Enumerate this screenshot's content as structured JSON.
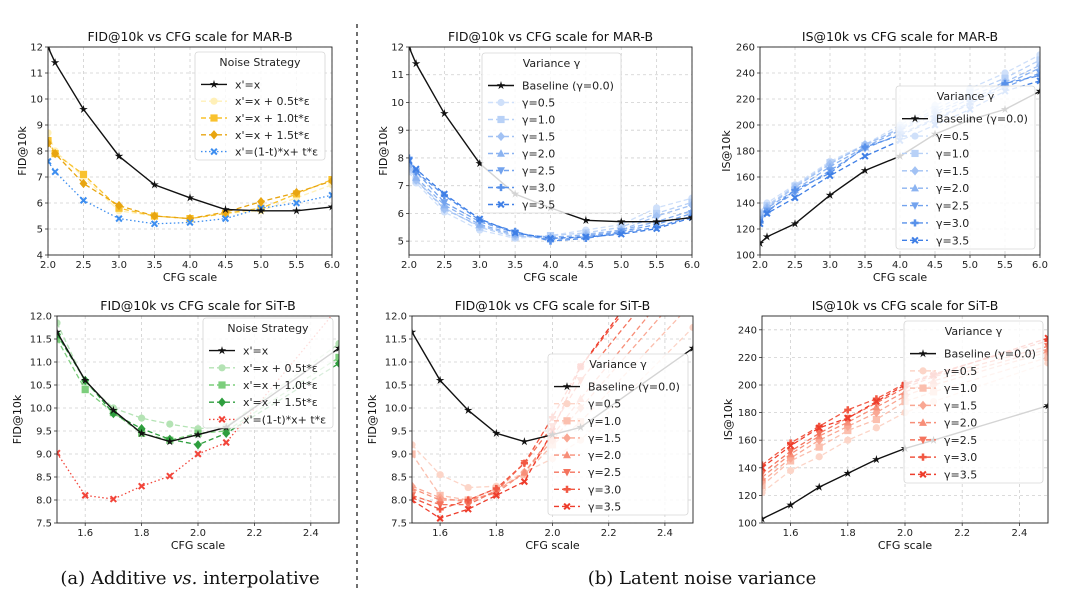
{
  "captions": {
    "a_prefix": "(a) Additive ",
    "a_vs": "vs.",
    "a_suffix": " interpolative",
    "b": "(b) Latent noise variance"
  },
  "chart_data": [
    {
      "type": "line",
      "title": "FID@10k vs CFG scale for MAR-B",
      "xlabel": "CFG scale",
      "ylabel": "FID@10k",
      "xlim": [
        2.0,
        6.0
      ],
      "ylim": [
        4,
        12
      ],
      "xticks": [
        "2.0",
        "2.5",
        "3.0",
        "3.5",
        "4.0",
        "4.5",
        "5.0",
        "5.5",
        "6.0"
      ],
      "yticks": [
        "4",
        "5",
        "6",
        "7",
        "8",
        "9",
        "10",
        "11",
        "12"
      ],
      "grid": true,
      "legend_title": "Noise Strategy",
      "legend_position": "upper-right",
      "x": [
        2.0,
        2.1,
        2.5,
        3.0,
        3.5,
        4.0,
        4.5,
        5.0,
        5.5,
        6.0
      ],
      "series": [
        {
          "name": "x'=x",
          "color": "#111111",
          "marker": "star",
          "style": "solid",
          "values": [
            12,
            11.4,
            9.6,
            7.8,
            6.7,
            6.2,
            5.75,
            5.7,
            5.7,
            5.85
          ]
        },
        {
          "name": "x'=x + 0.5t*ε",
          "color": "#fff0b8",
          "marker": "circle",
          "style": "dashed",
          "values": [
            8.7,
            8.0,
            7.0,
            5.7,
            5.5,
            5.4,
            5.6,
            5.7,
            6.2,
            6.7
          ]
        },
        {
          "name": "x'=x + 1.0t*ε",
          "color": "#f9c22e",
          "marker": "square",
          "style": "dashed",
          "values": [
            8.4,
            7.9,
            7.1,
            5.8,
            5.5,
            5.4,
            5.6,
            5.8,
            6.35,
            6.9
          ]
        },
        {
          "name": "x'=x + 1.5t*ε",
          "color": "#e8a510",
          "marker": "diamond",
          "style": "dashed",
          "values": [
            8.3,
            7.9,
            6.75,
            5.9,
            5.5,
            5.4,
            5.65,
            6.05,
            6.4,
            6.85
          ]
        },
        {
          "name": "x'=(1-t)*x+ t*ε",
          "color": "#3d8ef0",
          "marker": "x",
          "style": "dotted",
          "values": [
            7.6,
            7.2,
            6.1,
            5.4,
            5.2,
            5.25,
            5.4,
            5.8,
            6.0,
            6.3
          ]
        }
      ]
    },
    {
      "type": "line",
      "title": "FID@10k vs CFG scale for SiT-B",
      "xlabel": "CFG scale",
      "ylabel": "FID@10k",
      "xlim": [
        1.5,
        2.5
      ],
      "ylim": [
        7.5,
        12
      ],
      "xticks": [
        "1.6",
        "1.8",
        "2.0",
        "2.2",
        "2.4"
      ],
      "yticks": [
        "7.5",
        "8.0",
        "8.5",
        "9.0",
        "9.5",
        "10.0",
        "10.5",
        "11.0",
        "11.5",
        "12.0"
      ],
      "grid": true,
      "legend_title": "Noise Strategy",
      "legend_position": "upper-right",
      "x": [
        1.5,
        1.6,
        1.7,
        1.8,
        1.9,
        2.0,
        2.1,
        2.5
      ],
      "series": [
        {
          "name": "x'=x",
          "color": "#111111",
          "marker": "star",
          "style": "solid",
          "values": [
            11.65,
            10.6,
            9.95,
            9.45,
            9.27,
            9.42,
            9.58,
            11.3
          ]
        },
        {
          "name": "x'=x + 0.5t*ε",
          "color": "#b4e3b4",
          "marker": "circle",
          "style": "dashed",
          "values": [
            11.85,
            10.55,
            10.0,
            9.78,
            9.65,
            9.55,
            9.6,
            11.4
          ]
        },
        {
          "name": "x'=x + 1.0t*ε",
          "color": "#7cce7c",
          "marker": "square",
          "style": "dashed",
          "values": [
            11.5,
            10.4,
            9.9,
            9.45,
            9.3,
            9.45,
            9.5,
            11.1
          ]
        },
        {
          "name": "x'=x + 1.5t*ε",
          "color": "#2e9e3e",
          "marker": "diamond",
          "style": "dashed",
          "values": [
            11.6,
            10.6,
            9.88,
            9.55,
            9.32,
            9.2,
            9.45,
            10.97
          ]
        },
        {
          "name": "x'=(1-t)*x+ t*ε",
          "color": "#f2453a",
          "marker": "x",
          "style": "dotted",
          "values": [
            9.02,
            8.1,
            8.02,
            8.3,
            8.52,
            9.0,
            9.25,
            12.2
          ]
        }
      ]
    },
    {
      "type": "line",
      "title": "FID@10k vs CFG scale for MAR-B",
      "xlabel": "CFG scale",
      "ylabel": "FID@10k",
      "xlim": [
        2.0,
        6.0
      ],
      "ylim": [
        4.5,
        12
      ],
      "xticks": [
        "2.0",
        "2.5",
        "3.0",
        "3.5",
        "4.0",
        "4.5",
        "5.0",
        "5.5",
        "6.0"
      ],
      "yticks": [
        "5",
        "6",
        "7",
        "8",
        "9",
        "10",
        "11",
        "12"
      ],
      "grid": true,
      "legend_title": "Variance γ",
      "legend_position": "upper-center",
      "x": [
        2.0,
        2.1,
        2.5,
        3.0,
        3.5,
        4.0,
        4.5,
        5.0,
        5.5,
        6.0
      ],
      "series": [
        {
          "name": "Baseline (γ=0.0)",
          "color": "#111111",
          "marker": "star",
          "style": "solid",
          "values": [
            12,
            11.4,
            9.6,
            7.8,
            6.7,
            6.2,
            5.75,
            5.7,
            5.7,
            5.85
          ]
        },
        {
          "name": "γ=0.5",
          "color": "#cfe0fa",
          "marker": "circle",
          "style": "dashed",
          "values": [
            7.5,
            7.1,
            6.05,
            5.4,
            5.1,
            5.2,
            5.4,
            5.6,
            6.2,
            6.55
          ]
        },
        {
          "name": "γ=1.0",
          "color": "#b8d1f7",
          "marker": "square",
          "style": "dashed",
          "values": [
            7.6,
            7.2,
            6.2,
            5.5,
            5.15,
            5.2,
            5.3,
            5.5,
            6.0,
            6.4
          ]
        },
        {
          "name": "γ=1.5",
          "color": "#a2c2f4",
          "marker": "diamond",
          "style": "dashed",
          "values": [
            7.7,
            7.2,
            6.15,
            5.55,
            5.2,
            5.1,
            5.25,
            5.4,
            5.9,
            6.3
          ]
        },
        {
          "name": "γ=2.0",
          "color": "#8bb3f1",
          "marker": "triangle-up",
          "style": "dashed",
          "values": [
            7.8,
            7.3,
            6.3,
            5.6,
            5.25,
            5.15,
            5.2,
            5.4,
            5.7,
            6.1
          ]
        },
        {
          "name": "γ=2.5",
          "color": "#73a3ee",
          "marker": "triangle-down",
          "style": "dashed",
          "values": [
            7.9,
            7.5,
            6.4,
            5.7,
            5.3,
            5.05,
            5.15,
            5.35,
            5.6,
            6.0
          ]
        },
        {
          "name": "γ=3.0",
          "color": "#5891ea",
          "marker": "plus",
          "style": "dashed",
          "values": [
            8.0,
            7.5,
            6.65,
            5.75,
            5.35,
            5.0,
            5.1,
            5.3,
            5.5,
            5.9
          ]
        },
        {
          "name": "γ=3.5",
          "color": "#3f7fe6",
          "marker": "x",
          "style": "dashed",
          "values": [
            7.9,
            7.6,
            6.7,
            5.8,
            5.3,
            5.1,
            5.15,
            5.25,
            5.45,
            5.85
          ]
        }
      ]
    },
    {
      "type": "line",
      "title": "IS@10k vs CFG scale for MAR-B",
      "xlabel": "CFG scale",
      "ylabel": "IS@10k",
      "xlim": [
        2.0,
        6.0
      ],
      "ylim": [
        100,
        260
      ],
      "xticks": [
        "2.0",
        "2.5",
        "3.0",
        "3.5",
        "4.0",
        "4.5",
        "5.0",
        "5.5",
        "6.0"
      ],
      "yticks": [
        "100",
        "120",
        "140",
        "160",
        "180",
        "200",
        "220",
        "240",
        "260"
      ],
      "grid": true,
      "legend_title": "Variance γ",
      "legend_position": "lower-right",
      "x": [
        2.0,
        2.1,
        2.5,
        3.0,
        3.5,
        4.0,
        4.5,
        5.0,
        5.5,
        6.0
      ],
      "series": [
        {
          "name": "Baseline (γ=0.0)",
          "color": "#111111",
          "marker": "star",
          "style": "solid",
          "values": [
            109,
            114,
            124,
            146,
            165,
            176,
            193,
            204,
            212,
            226
          ]
        },
        {
          "name": "γ=0.5",
          "color": "#cfe0fa",
          "marker": "circle",
          "style": "dashed",
          "values": [
            133,
            140,
            154,
            172,
            185,
            200,
            215,
            228,
            240,
            254
          ]
        },
        {
          "name": "γ=1.0",
          "color": "#b8d1f7",
          "marker": "square",
          "style": "dashed",
          "values": [
            132,
            138,
            153,
            171,
            184,
            198,
            212,
            225,
            236,
            250
          ]
        },
        {
          "name": "γ=1.5",
          "color": "#a2c2f4",
          "marker": "diamond",
          "style": "dashed",
          "values": [
            131,
            137,
            152,
            170,
            185,
            197,
            210,
            222,
            233,
            246
          ]
        },
        {
          "name": "γ=2.0",
          "color": "#8bb3f1",
          "marker": "triangle-up",
          "style": "dashed",
          "values": [
            128,
            136,
            150,
            168,
            183,
            196,
            208,
            220,
            231,
            244
          ]
        },
        {
          "name": "γ=2.5",
          "color": "#73a3ee",
          "marker": "triangle-down",
          "style": "dashed",
          "values": [
            127,
            134,
            148,
            165,
            182,
            193,
            205,
            217,
            229,
            240
          ]
        },
        {
          "name": "γ=3.0",
          "color": "#5891ea",
          "marker": "plus",
          "style": "dashed",
          "values": [
            125,
            133,
            150,
            163,
            183,
            192,
            204,
            216,
            232,
            238
          ]
        },
        {
          "name": "γ=3.5",
          "color": "#3f7fe6",
          "marker": "x",
          "style": "dashed",
          "values": [
            124,
            132,
            144,
            161,
            176,
            188,
            200,
            212,
            226,
            234
          ]
        }
      ]
    },
    {
      "type": "line",
      "title": "FID@10k vs CFG scale for SiT-B",
      "xlabel": "CFG scale",
      "ylabel": "FID@10k",
      "xlim": [
        1.5,
        2.5
      ],
      "ylim": [
        7.5,
        12
      ],
      "xticks": [
        "1.6",
        "1.8",
        "2.0",
        "2.2",
        "2.4"
      ],
      "yticks": [
        "7.5",
        "8.0",
        "8.5",
        "9.0",
        "9.5",
        "10.0",
        "10.5",
        "11.0",
        "11.5",
        "12.0"
      ],
      "grid": true,
      "legend_title": "Variance γ",
      "legend_position": "lower-right",
      "x": [
        1.5,
        1.6,
        1.7,
        1.8,
        1.9,
        2.0,
        2.1,
        2.5
      ],
      "series": [
        {
          "name": "Baseline (γ=0.0)",
          "color": "#111111",
          "marker": "star",
          "style": "solid",
          "values": [
            11.65,
            10.6,
            9.95,
            9.45,
            9.27,
            9.42,
            9.58,
            11.3
          ]
        },
        {
          "name": "γ=0.5",
          "color": "#fcd5c8",
          "marker": "circle",
          "style": "dashed",
          "values": [
            9.2,
            8.55,
            8.27,
            8.3,
            8.6,
            8.9,
            9.3,
            11.75
          ]
        },
        {
          "name": "γ=1.0",
          "color": "#fbbfae",
          "marker": "square",
          "style": "dashed",
          "values": [
            9.0,
            8.1,
            8.0,
            8.25,
            8.55,
            9.2,
            9.7,
            12.3
          ]
        },
        {
          "name": "γ=1.5",
          "color": "#f9a793",
          "marker": "diamond",
          "style": "dashed",
          "values": [
            8.3,
            8.05,
            7.95,
            8.2,
            8.6,
            9.3,
            10.0,
            12.8
          ]
        },
        {
          "name": "γ=2.0",
          "color": "#f78e78",
          "marker": "triangle-up",
          "style": "dashed",
          "values": [
            8.25,
            8.0,
            8.0,
            8.15,
            8.6,
            9.4,
            10.2,
            13.2
          ]
        },
        {
          "name": "γ=2.5",
          "color": "#f4735d",
          "marker": "triangle-down",
          "style": "dashed",
          "values": [
            8.1,
            7.9,
            7.9,
            8.2,
            8.8,
            9.6,
            10.6,
            13.6
          ]
        },
        {
          "name": "γ=3.0",
          "color": "#f15843",
          "marker": "plus",
          "style": "dashed",
          "values": [
            8.05,
            7.8,
            8.0,
            8.25,
            8.8,
            9.8,
            10.9,
            14.0
          ]
        },
        {
          "name": "γ=3.5",
          "color": "#ee3d2c",
          "marker": "x",
          "style": "dashed",
          "values": [
            8.0,
            7.6,
            7.8,
            8.1,
            8.4,
            9.5,
            10.9,
            14.2
          ]
        }
      ]
    },
    {
      "type": "line",
      "title": "IS@10k vs CFG scale for SiT-B",
      "xlabel": "CFG scale",
      "ylabel": "IS@10k",
      "xlim": [
        1.5,
        2.5
      ],
      "ylim": [
        100,
        250
      ],
      "xticks": [
        "1.6",
        "1.8",
        "2.0",
        "2.2",
        "2.4"
      ],
      "yticks": [
        "100",
        "120",
        "140",
        "160",
        "180",
        "200",
        "220",
        "240"
      ],
      "grid": true,
      "legend_title": "Variance γ",
      "legend_position": "upper-right",
      "x": [
        1.5,
        1.6,
        1.7,
        1.8,
        1.9,
        2.0,
        2.1,
        2.5
      ],
      "series": [
        {
          "name": "Baseline (γ=0.0)",
          "color": "#111111",
          "marker": "star",
          "style": "solid",
          "values": [
            103,
            113,
            126,
            136,
            146,
            154,
            160,
            185
          ]
        },
        {
          "name": "γ=0.5",
          "color": "#fcd5c8",
          "marker": "circle",
          "style": "dashed",
          "values": [
            122,
            138,
            148,
            160,
            169,
            180,
            188,
            216
          ]
        },
        {
          "name": "γ=1.0",
          "color": "#fbbfae",
          "marker": "square",
          "style": "dashed",
          "values": [
            127,
            145,
            155,
            167,
            175,
            188,
            195,
            220
          ]
        },
        {
          "name": "γ=1.5",
          "color": "#f9a793",
          "marker": "diamond",
          "style": "dashed",
          "values": [
            130,
            147,
            160,
            170,
            180,
            192,
            200,
            224
          ]
        },
        {
          "name": "γ=2.0",
          "color": "#f78e78",
          "marker": "triangle-up",
          "style": "dashed",
          "values": [
            133,
            150,
            163,
            173,
            184,
            195,
            203,
            226
          ]
        },
        {
          "name": "γ=2.5",
          "color": "#f4735d",
          "marker": "triangle-down",
          "style": "dashed",
          "values": [
            136,
            152,
            165,
            176,
            187,
            198,
            206,
            228
          ]
        },
        {
          "name": "γ=3.0",
          "color": "#f15843",
          "marker": "plus",
          "style": "dashed",
          "values": [
            142,
            158,
            170,
            182,
            190,
            201,
            208,
            232
          ]
        },
        {
          "name": "γ=3.5",
          "color": "#ee3d2c",
          "marker": "x",
          "style": "dashed",
          "values": [
            140,
            156,
            169,
            176,
            188,
            200,
            207,
            234
          ]
        }
      ]
    }
  ]
}
